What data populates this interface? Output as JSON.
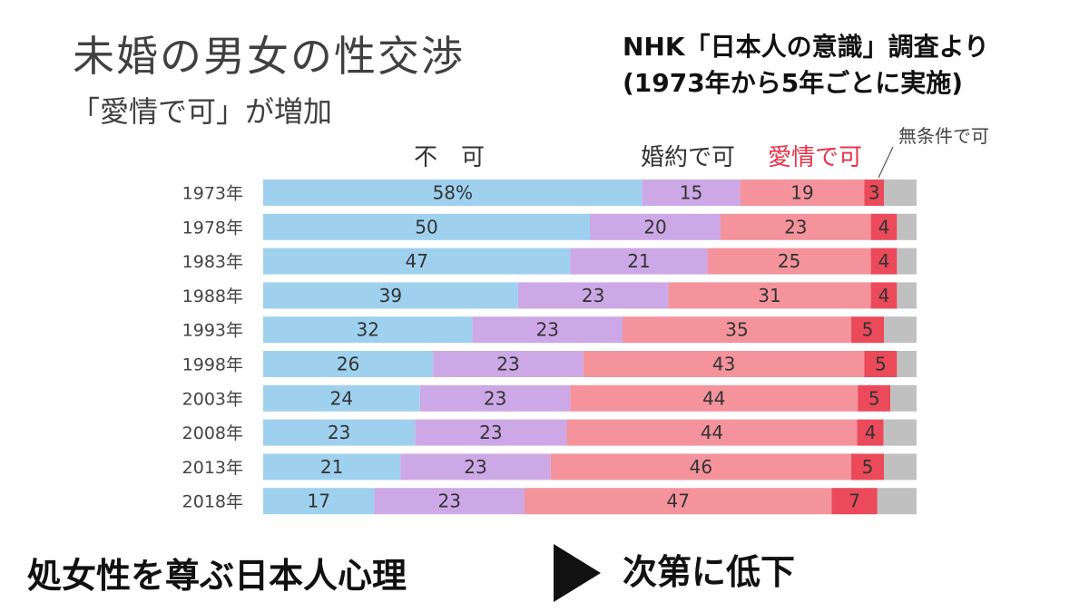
{
  "title": "未婚の男女の性交渉",
  "subtitle": "「愛情で可」が増加",
  "source_line1": "NHK「日本人の意識」調査より",
  "source_line2": "(1973年から5年ごとに実施)",
  "footer_left": "処女性を尊ぶ日本人心理",
  "footer_right": "次第に低下",
  "colors": {
    "fuka": "#9fd1ef",
    "konyaku": "#cda8e6",
    "aijo": "#f4939c",
    "mujoken": "#ea4a5a",
    "other": "#c0c0c0",
    "aijo_label": "#e8334a"
  },
  "chart_data": {
    "type": "bar",
    "orientation": "horizontal",
    "stacked": true,
    "normalized": true,
    "grid": false,
    "categories": [
      "1973年",
      "1978年",
      "1983年",
      "1988年",
      "1993年",
      "1998年",
      "2003年",
      "2008年",
      "2013年",
      "2018年"
    ],
    "series": [
      {
        "name": "不　可",
        "values": [
          58,
          50,
          47,
          39,
          32,
          26,
          24,
          23,
          21,
          17
        ],
        "first_label_suffix": "%"
      },
      {
        "name": "婚約で可",
        "values": [
          15,
          20,
          21,
          23,
          23,
          23,
          23,
          23,
          23,
          23
        ]
      },
      {
        "name": "愛情で可",
        "values": [
          19,
          23,
          25,
          31,
          35,
          43,
          44,
          44,
          46,
          47
        ]
      },
      {
        "name": "無条件で可",
        "values": [
          3,
          4,
          4,
          4,
          5,
          5,
          5,
          4,
          5,
          7
        ]
      }
    ],
    "remainder": [
      5,
      3,
      3,
      3,
      5,
      3,
      4,
      5,
      5,
      6
    ],
    "xlim": [
      0,
      100
    ]
  }
}
